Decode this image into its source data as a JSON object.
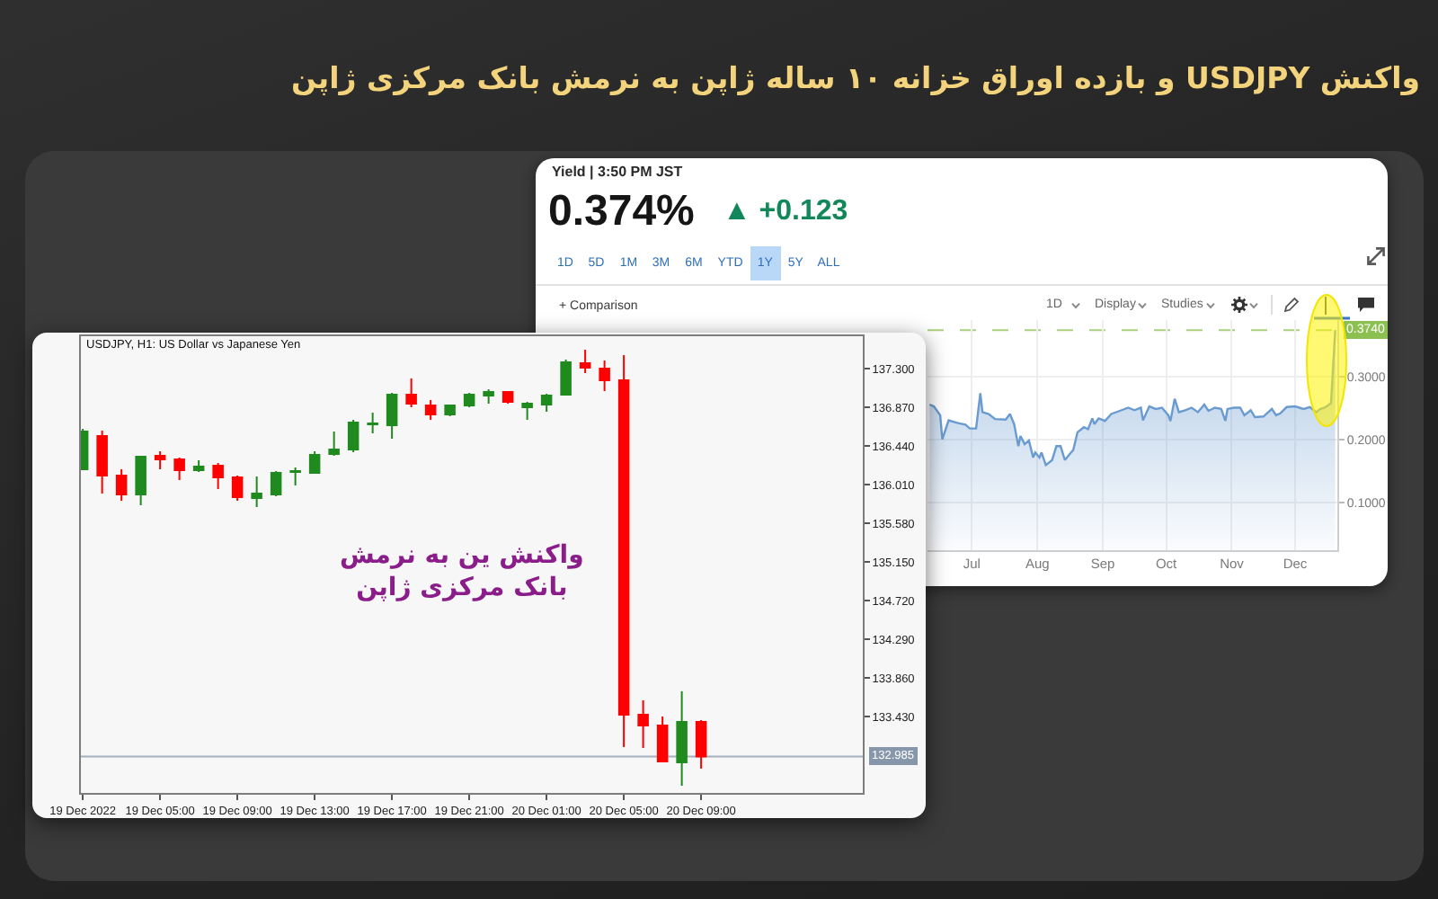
{
  "chart_data": [
    {
      "type": "other",
      "title": "واکنش USDJPY و بازده اوراق خزانه ۱۰ ساله ژاپن به نرمش بانک مرکزی ژاپن"
    },
    {
      "type": "area",
      "annotations": [
        "Yield | 3:50 PM JST",
        "0.374%",
        "▲ +0.123",
        "1D",
        "5D",
        "1M",
        "3M",
        "6M",
        "YTD",
        "1Y",
        "5Y",
        "ALL",
        "+ Comparison",
        "1D",
        "Display",
        "Studies"
      ],
      "x": [
        "--06-11",
        "--06-13",
        "--06-16",
        "--06-17",
        "--06-20",
        "--06-24",
        "--06-28",
        "--06-30",
        "--07-03",
        "--07-05",
        "--07-06",
        "--07-09",
        "--07-12",
        "--07-17",
        "--07-19",
        "--07-21",
        "--07-23",
        "--07-24",
        "--07-26",
        "--07-28",
        "--07-30",
        "--07-31",
        "--08-02",
        "--08-03",
        "--08-05",
        "--08-08",
        "--08-10",
        "--08-12",
        "--08-14",
        "--08-16",
        "--08-18",
        "--08-20",
        "--08-23",
        "--08-25",
        "--08-27",
        "--08-28",
        "--08-30",
        "--09-02",
        "--09-05",
        "--09-09",
        "--09-13",
        "--09-16",
        "--09-19",
        "--09-20",
        "--09-23",
        "--09-26",
        "--09-29",
        "--10-02",
        "--10-03",
        "--10-05",
        "--10-07",
        "--10-10",
        "--10-13",
        "--10-16",
        "--10-19",
        "--10-21",
        "--10-24",
        "--10-27",
        "--10-29",
        "--10-30",
        "--11-02",
        "--11-05",
        "--11-07",
        "--11-10",
        "--11-12",
        "--11-16",
        "--11-20",
        "--11-22",
        "--11-24",
        "--11-27",
        "--12-01",
        "--12-05",
        "--12-08",
        "--12-11",
        "--12-13",
        "--12-15",
        "--12-18",
        "--12-20"
      ],
      "series": [
        {
          "color": "#6a9bd0",
          "values": [
            0.256,
            0.253,
            0.239,
            0.201,
            0.231,
            0.227,
            0.224,
            0.218,
            0.218,
            0.274,
            0.244,
            0.241,
            0.233,
            0.232,
            0.241,
            0.225,
            0.19,
            0.206,
            0.193,
            0.199,
            0.172,
            0.18,
            0.172,
            0.18,
            0.16,
            0.168,
            0.19,
            0.19,
            0.168,
            0.176,
            0.184,
            0.212,
            0.22,
            0.217,
            0.234,
            0.225,
            0.234,
            0.23,
            0.241,
            0.246,
            0.251,
            0.247,
            0.251,
            0.231,
            0.253,
            0.249,
            0.251,
            0.239,
            0.23,
            0.265,
            0.244,
            0.247,
            0.251,
            0.244,
            0.256,
            0.246,
            0.251,
            0.249,
            0.23,
            0.249,
            0.251,
            0.251,
            0.239,
            0.247,
            0.236,
            0.237,
            0.249,
            0.239,
            0.242,
            0.252,
            0.253,
            0.249,
            0.252,
            0.244,
            0.249,
            0.251,
            0.258,
            0.374
          ]
        }
      ],
      "xlim": [
        "--06-10",
        "--12-21"
      ],
      "ylim": [
        0.025,
        0.39
      ],
      "xticks": [
        {
          "value": "--07-01",
          "label": "Jul"
        },
        {
          "value": "--08-01",
          "label": "Aug"
        },
        {
          "value": "--09-01",
          "label": "Sep"
        },
        {
          "value": "--10-01",
          "label": "Oct"
        },
        {
          "value": "--11-01",
          "label": "Nov"
        },
        {
          "value": "--12-01",
          "label": "Dec"
        }
      ],
      "yticks": [
        {
          "value": 0.1,
          "label": "0.1000"
        },
        {
          "value": 0.2,
          "label": "0.2000"
        },
        {
          "value": 0.3,
          "label": "0.3000"
        }
      ],
      "grid": true,
      "ref_lines": [
        {
          "axis": "y",
          "value": 0.374,
          "label": "0.3740",
          "color": "#8cc152",
          "line_style": "dashed"
        }
      ]
    },
    {
      "type": "candlestick",
      "title": "USDJPY, H1: US Dollar vs Japanese Yen",
      "annotations": [
        "واکنش ین به نرمش\nبانک مرکزی ژاپن"
      ],
      "x": [
        "2022-12-19T01:00",
        "2022-12-19T02:00",
        "2022-12-19T03:00",
        "2022-12-19T04:00",
        "2022-12-19T05:00",
        "2022-12-19T06:00",
        "2022-12-19T07:00",
        "2022-12-19T08:00",
        "2022-12-19T09:00",
        "2022-12-19T10:00",
        "2022-12-19T11:00",
        "2022-12-19T12:00",
        "2022-12-19T13:00",
        "2022-12-19T14:00",
        "2022-12-19T15:00",
        "2022-12-19T16:00",
        "2022-12-19T17:00",
        "2022-12-19T18:00",
        "2022-12-19T19:00",
        "2022-12-19T20:00",
        "2022-12-19T21:00",
        "2022-12-19T22:00",
        "2022-12-19T23:00",
        "2022-12-20T00:00",
        "2022-12-20T01:00",
        "2022-12-20T02:00",
        "2022-12-20T03:00",
        "2022-12-20T04:00",
        "2022-12-20T05:00",
        "2022-12-20T06:00",
        "2022-12-20T07:00",
        "2022-12-20T08:00",
        "2022-12-20T09:00"
      ],
      "ohlc": [
        [
          136.18,
          136.63,
          136.17,
          136.6
        ],
        [
          136.55,
          136.61,
          135.91,
          136.11
        ],
        [
          136.11,
          136.18,
          135.83,
          135.9
        ],
        [
          135.9,
          136.33,
          135.78,
          136.32
        ],
        [
          136.33,
          136.38,
          136.18,
          136.29
        ],
        [
          136.29,
          136.31,
          136.06,
          136.17
        ],
        [
          136.17,
          136.28,
          136.15,
          136.21
        ],
        [
          136.22,
          136.25,
          135.96,
          136.09
        ],
        [
          136.09,
          136.11,
          135.83,
          135.87
        ],
        [
          135.86,
          136.1,
          135.76,
          135.91
        ],
        [
          135.9,
          136.16,
          135.88,
          136.14
        ],
        [
          136.15,
          136.2,
          136.0,
          136.16
        ],
        [
          136.14,
          136.38,
          136.13,
          136.34
        ],
        [
          136.35,
          136.6,
          136.33,
          136.4
        ],
        [
          136.4,
          136.73,
          136.37,
          136.7
        ],
        [
          136.68,
          136.81,
          136.58,
          136.69
        ],
        [
          136.67,
          137.03,
          136.52,
          137.01
        ],
        [
          137.01,
          137.19,
          136.87,
          136.91
        ],
        [
          136.89,
          136.95,
          136.73,
          136.79
        ],
        [
          136.79,
          136.9,
          136.77,
          136.89
        ],
        [
          136.89,
          137.03,
          136.87,
          137.01
        ],
        [
          137.0,
          137.07,
          136.91,
          137.04
        ],
        [
          137.04,
          137.05,
          136.91,
          136.93
        ],
        [
          136.87,
          136.93,
          136.73,
          136.91
        ],
        [
          136.9,
          137.02,
          136.82,
          137.0
        ],
        [
          137.01,
          137.4,
          137.0,
          137.37
        ],
        [
          137.36,
          137.51,
          137.25,
          137.31
        ],
        [
          137.3,
          137.39,
          137.05,
          137.17
        ],
        [
          137.17,
          137.45,
          133.09,
          133.45
        ],
        [
          133.45,
          133.61,
          133.08,
          133.33
        ],
        [
          133.33,
          133.43,
          132.92,
          132.93
        ],
        [
          132.92,
          133.71,
          132.66,
          133.37
        ],
        [
          133.37,
          133.39,
          132.85,
          132.985
        ]
      ],
      "colors": [
        "#1f8b1f",
        "#ff0000",
        "#ff0000",
        "#1f8b1f",
        "#ff0000",
        "#ff0000",
        "#1f8b1f",
        "#ff0000",
        "#ff0000",
        "#1f8b1f",
        "#1f8b1f",
        "#1f8b1f",
        "#1f8b1f",
        "#1f8b1f",
        "#1f8b1f",
        "#1f8b1f",
        "#1f8b1f",
        "#ff0000",
        "#ff0000",
        "#1f8b1f",
        "#1f8b1f",
        "#1f8b1f",
        "#ff0000",
        "#1f8b1f",
        "#1f8b1f",
        "#1f8b1f",
        "#ff0000",
        "#ff0000",
        "#ff0000",
        "#ff0000",
        "#ff0000",
        "#1f8b1f",
        "#ff0000"
      ],
      "xlim": [
        "2022-12-19T00:54",
        "2022-12-20T17:22"
      ],
      "ylim": [
        132.58,
        137.66
      ],
      "xticks": [
        {
          "value": "2022-12-19T01:00",
          "label": "19 Dec 2022"
        },
        {
          "value": "2022-12-19T05:00",
          "label": "19 Dec 05:00"
        },
        {
          "value": "2022-12-19T09:00",
          "label": "19 Dec 09:00"
        },
        {
          "value": "2022-12-19T13:00",
          "label": "19 Dec 13:00"
        },
        {
          "value": "2022-12-19T17:00",
          "label": "19 Dec 17:00"
        },
        {
          "value": "2022-12-19T21:00",
          "label": "19 Dec 21:00"
        },
        {
          "value": "2022-12-20T01:00",
          "label": "20 Dec 01:00"
        },
        {
          "value": "2022-12-20T05:00",
          "label": "20 Dec 05:00"
        },
        {
          "value": "2022-12-20T09:00",
          "label": "20 Dec 09:00"
        }
      ],
      "yticks": [
        {
          "value": 137.3,
          "label": "137.300"
        },
        {
          "value": 136.87,
          "label": "136.870"
        },
        {
          "value": 136.44,
          "label": "136.440"
        },
        {
          "value": 136.01,
          "label": "136.010"
        },
        {
          "value": 135.58,
          "label": "135.580"
        },
        {
          "value": 135.15,
          "label": "135.150"
        },
        {
          "value": 134.72,
          "label": "134.720"
        },
        {
          "value": 134.29,
          "label": "134.290"
        },
        {
          "value": 133.86,
          "label": "133.860"
        },
        {
          "value": 133.43,
          "label": "133.430"
        }
      ],
      "ref_lines": [
        {
          "axis": "y",
          "value": 132.985,
          "label": "132.985",
          "color": "#8797ab"
        }
      ]
    }
  ]
}
